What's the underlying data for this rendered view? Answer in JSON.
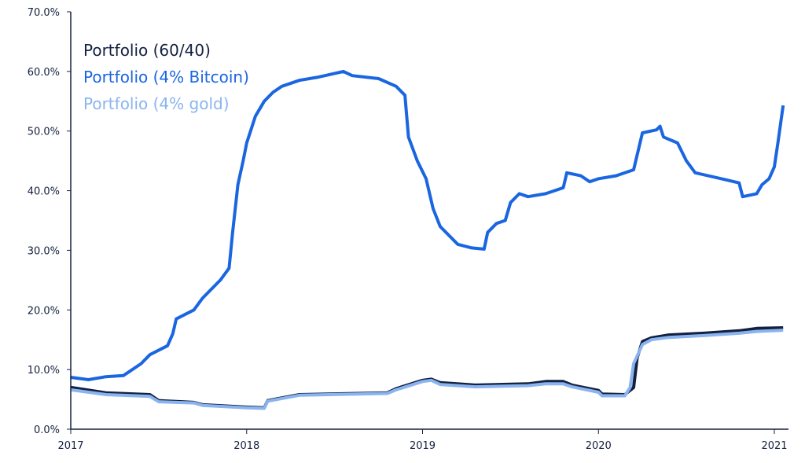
{
  "chart_data": {
    "type": "line",
    "title": "",
    "xlabel": "",
    "ylabel": "",
    "xlim": [
      2017,
      2021.07
    ],
    "ylim": [
      0,
      70
    ],
    "x_ticks": [
      "2017",
      "2018",
      "2019",
      "2020",
      "2021"
    ],
    "y_ticks": [
      "0.0%",
      "10.0%",
      "20.0%",
      "30.0%",
      "40.0%",
      "50.0%",
      "60.0%",
      "70.0%"
    ],
    "grid": false,
    "legend_position": "top-left",
    "series": [
      {
        "name": "Portfolio (60/40)",
        "color": "#13203f",
        "x": [
          2017,
          2017.2,
          2017.45,
          2017.5,
          2017.7,
          2017.75,
          2018.0,
          2018.1,
          2018.12,
          2018.3,
          2018.8,
          2018.85,
          2019.0,
          2019.05,
          2019.1,
          2019.3,
          2019.6,
          2019.7,
          2019.8,
          2019.85,
          2020.0,
          2020.02,
          2020.15,
          2020.2,
          2020.22,
          2020.25,
          2020.3,
          2020.4,
          2020.6,
          2020.8,
          2020.9,
          2021.05
        ],
        "y": [
          7,
          6.1,
          5.8,
          4.8,
          4.5,
          4.1,
          3.7,
          3.6,
          4.8,
          5.8,
          6.1,
          6.8,
          8.2,
          8.4,
          7.8,
          7.4,
          7.6,
          8.0,
          8.0,
          7.4,
          6.5,
          5.9,
          5.8,
          7,
          12,
          14.7,
          15.3,
          15.8,
          16.1,
          16.5,
          16.9,
          17
        ]
      },
      {
        "name": "Portfolio (4% Bitcoin)",
        "color": "#1a66e0",
        "x": [
          2017,
          2017.1,
          2017.2,
          2017.3,
          2017.4,
          2017.45,
          2017.55,
          2017.58,
          2017.6,
          2017.7,
          2017.75,
          2017.85,
          2017.9,
          2017.92,
          2017.95,
          2017.98,
          2018.0,
          2018.05,
          2018.1,
          2018.15,
          2018.2,
          2018.3,
          2018.4,
          2018.55,
          2018.6,
          2018.75,
          2018.85,
          2018.9,
          2018.92,
          2018.97,
          2019.02,
          2019.06,
          2019.1,
          2019.2,
          2019.28,
          2019.35,
          2019.37,
          2019.42,
          2019.47,
          2019.5,
          2019.55,
          2019.6,
          2019.7,
          2019.75,
          2019.8,
          2019.82,
          2019.9,
          2019.95,
          2020.0,
          2020.1,
          2020.2,
          2020.25,
          2020.33,
          2020.35,
          2020.37,
          2020.45,
          2020.5,
          2020.55,
          2020.7,
          2020.8,
          2020.82,
          2020.9,
          2020.93,
          2020.97,
          2021.0,
          2021.02,
          2021.05
        ],
        "y": [
          8.7,
          8.3,
          8.8,
          9.0,
          11,
          12.5,
          14,
          16,
          18.5,
          20,
          22,
          25,
          27,
          33,
          41,
          45,
          48,
          52.5,
          55,
          56.5,
          57.5,
          58.5,
          59,
          60,
          59.3,
          58.8,
          57.5,
          56,
          49,
          45,
          42,
          37,
          34,
          31,
          30.4,
          30.2,
          33,
          34.5,
          35,
          38,
          39.5,
          39,
          39.5,
          40,
          40.5,
          43,
          42.5,
          41.5,
          42,
          42.5,
          43.5,
          49.7,
          50.2,
          50.8,
          49,
          48,
          45,
          43,
          42,
          41.3,
          39,
          39.5,
          41,
          42,
          44,
          48,
          54.3
        ]
      },
      {
        "name": "Portfolio (4% gold)",
        "color": "#8ab4f0",
        "x": [
          2017,
          2017.2,
          2017.45,
          2017.5,
          2017.7,
          2017.75,
          2018.0,
          2018.1,
          2018.12,
          2018.3,
          2018.8,
          2018.85,
          2019.0,
          2019.05,
          2019.1,
          2019.3,
          2019.6,
          2019.7,
          2019.8,
          2019.85,
          2020.0,
          2020.02,
          2020.15,
          2020.18,
          2020.2,
          2020.25,
          2020.3,
          2020.4,
          2020.6,
          2020.8,
          2020.9,
          2021.05
        ],
        "y": [
          6.6,
          5.8,
          5.5,
          4.6,
          4.4,
          4.0,
          3.6,
          3.5,
          4.7,
          5.7,
          6.0,
          6.6,
          8.0,
          8.2,
          7.5,
          7.1,
          7.3,
          7.6,
          7.6,
          7.1,
          6.2,
          5.6,
          5.6,
          7,
          11,
          14.2,
          15,
          15.4,
          15.7,
          16.1,
          16.4,
          16.6
        ]
      }
    ]
  }
}
